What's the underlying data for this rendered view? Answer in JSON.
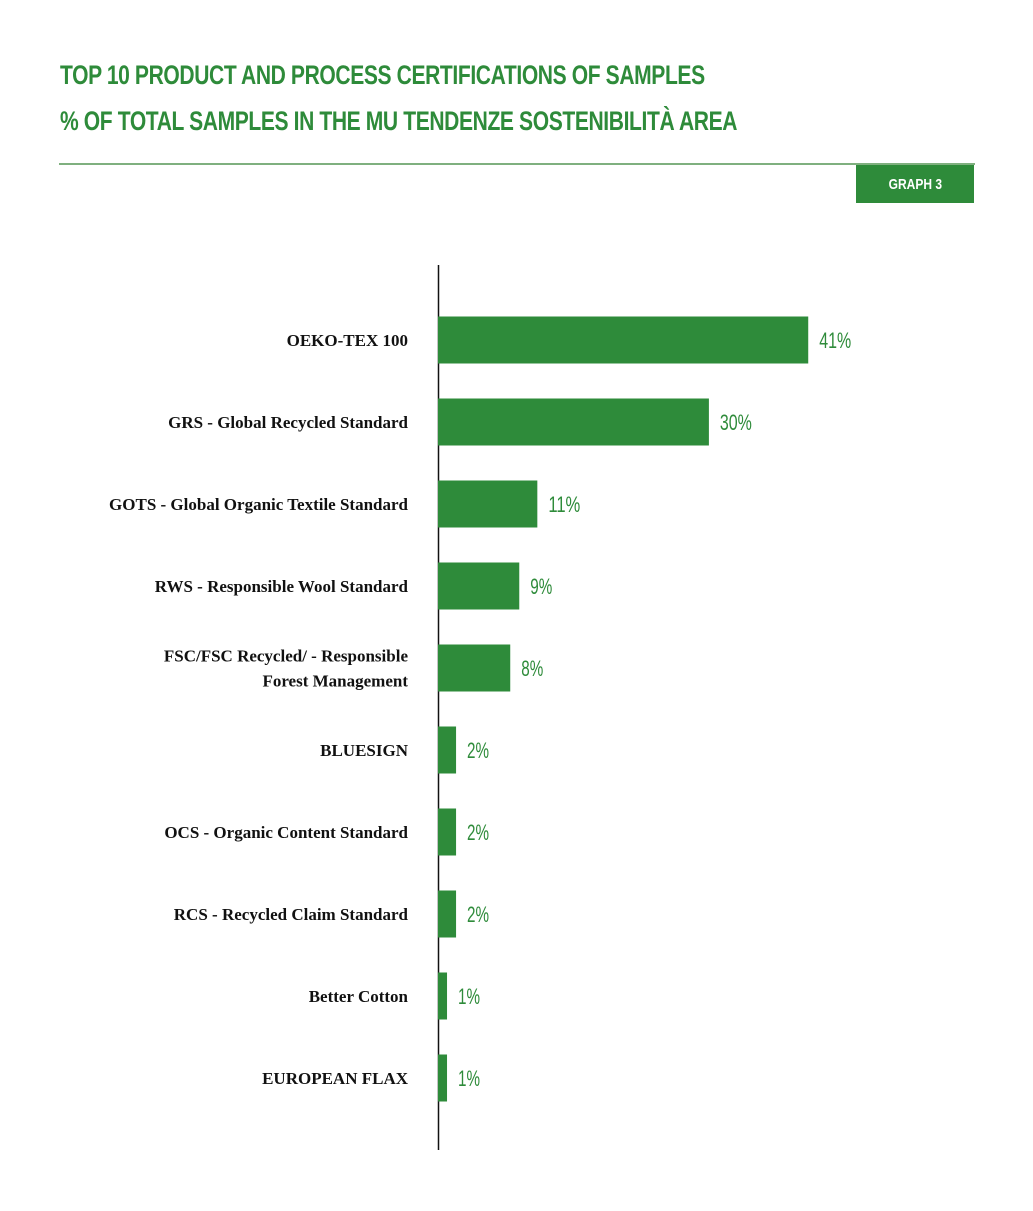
{
  "header": {
    "title_line1": "TOP 10 PRODUCT AND PROCESS CERTIFICATIONS OF SAMPLES",
    "title_line2": "% OF TOTAL SAMPLES IN THE MU TENDENZE SOSTENIBILITÀ AREA",
    "badge": "GRAPH 3"
  },
  "colors": {
    "accent": "#2e8b3a",
    "rule": "#7fb07f",
    "text": "#111111"
  },
  "chart_data": {
    "type": "bar",
    "orientation": "horizontal",
    "categories": [
      [
        "OEKO-TEX 100"
      ],
      [
        "GRS - Global Recycled Standard"
      ],
      [
        "GOTS - Global Organic Textile Standard"
      ],
      [
        "RWS - Responsible Wool Standard"
      ],
      [
        "FSC/FSC Recycled/ - Responsible",
        "Forest Management"
      ],
      [
        "BLUESIGN"
      ],
      [
        "OCS - Organic Content Standard"
      ],
      [
        "RCS - Recycled Claim Standard"
      ],
      [
        "Better Cotton"
      ],
      [
        "EUROPEAN FLAX"
      ]
    ],
    "values": [
      41,
      30,
      11,
      9,
      8,
      2,
      2,
      2,
      1,
      1
    ],
    "value_labels": [
      "41%",
      "30%",
      "11%",
      "9%",
      "8%",
      "2%",
      "2%",
      "2%",
      "1%",
      "1%"
    ],
    "unit": "%",
    "xlim": [
      0,
      50
    ],
    "grid": false,
    "legend": "none"
  }
}
